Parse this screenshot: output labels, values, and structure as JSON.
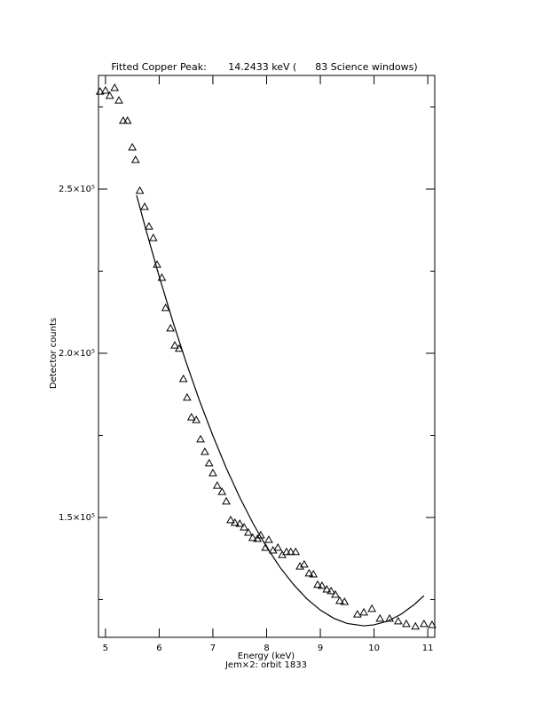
{
  "chart_data": {
    "type": "scatter",
    "title": "Fitted Copper Peak:       14.2433 keV (      83 Science windows)",
    "x_label": "Energy (keV)",
    "subtitle": "Jem×2: orbit 1833",
    "y_label": "Detector counts",
    "xlim": [
      4.87,
      11.13
    ],
    "xticks": [
      5,
      6,
      7,
      8,
      9,
      10,
      11
    ],
    "ylim": [
      113500,
      284600
    ],
    "yticks": [
      {
        "value": 150000,
        "label": "1.5×10⁵"
      },
      {
        "value": 200000,
        "label": "2.0×10⁵"
      },
      {
        "value": 250000,
        "label": "2.5×10⁵"
      }
    ],
    "yminorticks": [
      125000,
      175000,
      225000,
      275000
    ],
    "grid": false,
    "series": [
      {
        "style": "triangle",
        "color": "#000000",
        "x": [
          4.9,
          5.0,
          5.08,
          5.17,
          5.25,
          5.33,
          5.41,
          5.5,
          5.56,
          5.64,
          5.73,
          5.81,
          5.89,
          5.96,
          6.05,
          6.12,
          6.21,
          6.29,
          6.37,
          6.45,
          6.52,
          6.6,
          6.69,
          6.77,
          6.85,
          6.93,
          7.0,
          7.08,
          7.17,
          7.25,
          7.33,
          7.41,
          7.5,
          7.58,
          7.66,
          7.74,
          7.83,
          7.89,
          7.98,
          8.04,
          8.12,
          8.21,
          8.29,
          8.37,
          8.45,
          8.54,
          8.62,
          8.7,
          8.79,
          8.87,
          8.95,
          9.03,
          9.12,
          9.2,
          9.28,
          9.36,
          9.45,
          9.69,
          9.81,
          9.96,
          10.11,
          10.29,
          10.45,
          10.6,
          10.77,
          10.93,
          11.08
        ],
        "values": [
          279700,
          280000,
          278400,
          280800,
          277000,
          270800,
          270800,
          262700,
          258900,
          249500,
          244600,
          238600,
          235100,
          227000,
          223000,
          213800,
          207600,
          202400,
          201400,
          192200,
          186500,
          180500,
          179700,
          173800,
          170000,
          166500,
          163500,
          159700,
          157800,
          154900,
          149200,
          148400,
          148100,
          147000,
          145400,
          143800,
          143500,
          144600,
          140800,
          143200,
          140000,
          140800,
          138600,
          139500,
          139500,
          139500,
          135100,
          135700,
          133000,
          132700,
          129500,
          129200,
          128100,
          127600,
          126500,
          124600,
          124300,
          120500,
          121100,
          122200,
          119200,
          119200,
          118400,
          117600,
          116800,
          117600,
          117300
        ]
      },
      {
        "style": "line",
        "color": "#000000",
        "x": [
          5.58,
          5.75,
          6,
          6.25,
          6.5,
          6.75,
          7,
          7.25,
          7.5,
          7.75,
          8,
          8.25,
          8.5,
          8.75,
          9,
          9.25,
          9.5,
          9.81,
          10,
          10.25,
          10.5,
          10.75,
          10.93
        ],
        "values": [
          248100,
          237800,
          223400,
          209900,
          197300,
          185600,
          174900,
          165000,
          156100,
          148100,
          141000,
          134800,
          129600,
          125200,
          121800,
          119300,
          117700,
          117000,
          117300,
          118400,
          120500,
          123500,
          126200
        ]
      }
    ]
  }
}
